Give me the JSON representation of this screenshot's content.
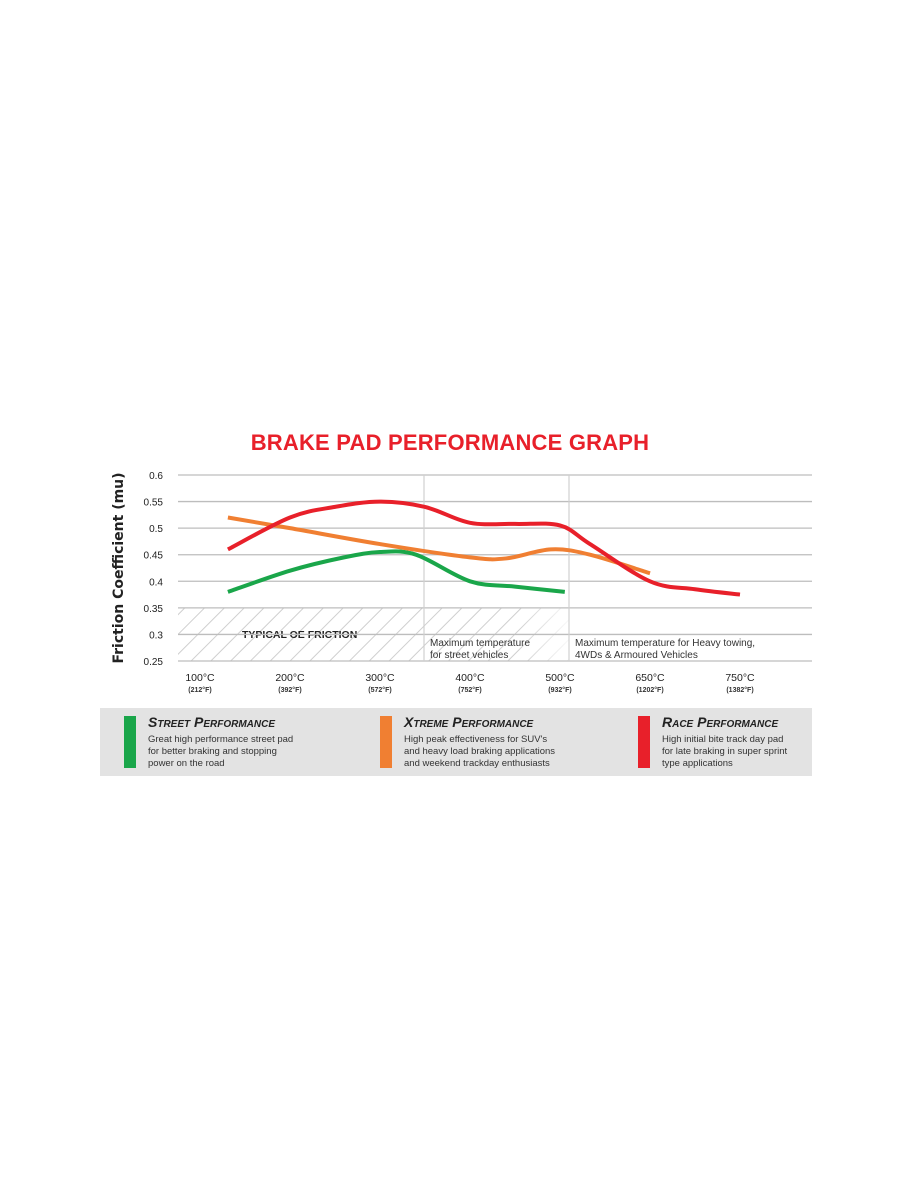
{
  "chart_data": {
    "type": "line",
    "title": "BRAKE PAD PERFORMANCE GRAPH",
    "ylabel": "Friction Coefficient (mu)",
    "xlabel": "",
    "ylim": [
      0.25,
      0.6
    ],
    "yticks": [
      "0.6",
      "0.55",
      "0.5",
      "0.45",
      "0.4",
      "0.35",
      "0.3",
      "0.25"
    ],
    "xticks": [
      {
        "c": "100°C",
        "f": "(212°F)",
        "value": 100
      },
      {
        "c": "200°C",
        "f": "(392°F)",
        "value": 200
      },
      {
        "c": "300°C",
        "f": "(572°F)",
        "value": 300
      },
      {
        "c": "400°C",
        "f": "(752°F)",
        "value": 400
      },
      {
        "c": "500°C",
        "f": "(932°F)",
        "value": 500
      },
      {
        "c": "650°C",
        "f": "(1202°F)",
        "value": 650
      },
      {
        "c": "750°C",
        "f": "(1382°F)",
        "value": 750
      }
    ],
    "grid": true,
    "region": {
      "label": "TYPICAL OE FRICTION",
      "y_range": [
        0.25,
        0.35
      ],
      "x_range": [
        100,
        515
      ]
    },
    "annotations": [
      {
        "text": "Maximum temperature\nfor street vehicles",
        "x": 350
      },
      {
        "text": "Maximum temperature for Heavy towing,\n4WDs & Armoured Vehicles",
        "x": 515
      }
    ],
    "series": [
      {
        "name": "Street Performance",
        "color": "#1aa64a",
        "x": [
          131,
          200,
          260,
          300,
          340,
          400,
          450,
          508
        ],
        "y": [
          0.38,
          0.42,
          0.445,
          0.455,
          0.45,
          0.4,
          0.39,
          0.38
        ]
      },
      {
        "name": "Xtreme Performance",
        "color": "#f07f32",
        "x": [
          131,
          200,
          300,
          400,
          440,
          490,
          550,
          650
        ],
        "y": [
          0.52,
          0.5,
          0.47,
          0.445,
          0.443,
          0.46,
          0.45,
          0.415
        ]
      },
      {
        "name": "Race Performance",
        "color": "#e8202a",
        "x": [
          131,
          200,
          250,
          300,
          350,
          400,
          450,
          500,
          550,
          650,
          700,
          750
        ],
        "y": [
          0.46,
          0.52,
          0.54,
          0.55,
          0.54,
          0.51,
          0.508,
          0.505,
          0.47,
          0.4,
          0.385,
          0.375
        ]
      }
    ]
  },
  "legend": [
    {
      "name": "Street Performance",
      "color": "#1aa64a",
      "desc": "Great high performance street pad\nfor better braking and stopping\npower on the road"
    },
    {
      "name": "Xtreme Performance",
      "color": "#f07f32",
      "desc": "High peak effectiveness for SUV's\nand heavy load braking applications\nand weekend trackday enthusiasts"
    },
    {
      "name": "Race Performance",
      "color": "#e8202a",
      "desc": "High initial bite track day pad\nfor late braking in super sprint\ntype applications"
    }
  ]
}
